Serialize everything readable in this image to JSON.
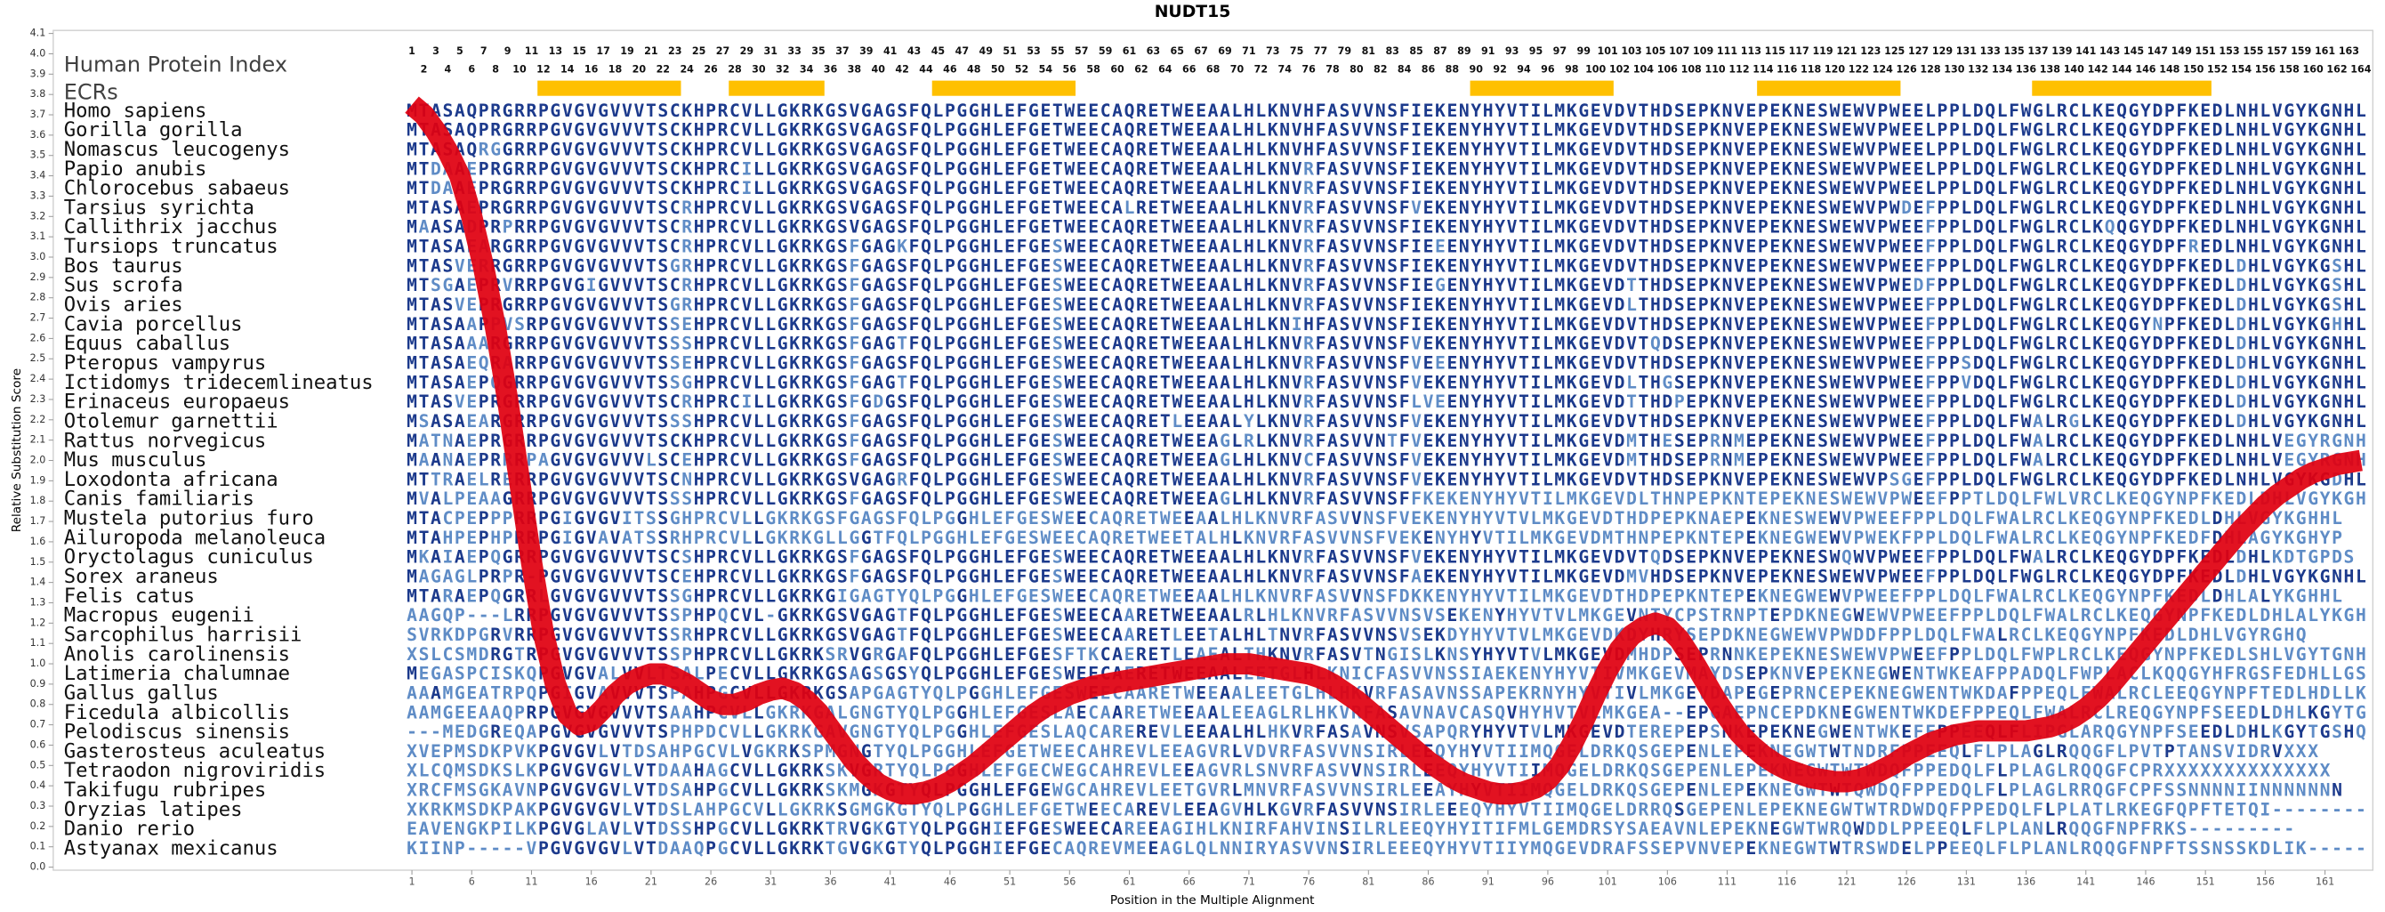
{
  "chart_data": {
    "type": "line",
    "title": "NUDT15",
    "y_label": "Relative Substitution Score",
    "x_label": "Position in the Multiple Alignment",
    "index_label": "Human Protein Index",
    "ecr_label": "ECRs",
    "color": "#e00010",
    "ecr_color": "#ffc000",
    "match_color": "#1c3a8c",
    "mismatch_color": "#5f8cc6",
    "xlim": [
      -29,
      165
    ],
    "ylim": [
      0,
      4.1
    ],
    "xticks": [
      1,
      6,
      11,
      16,
      21,
      26,
      31,
      36,
      41,
      46,
      51,
      56,
      61,
      66,
      71,
      76,
      81,
      86,
      91,
      96,
      101,
      106,
      111,
      116,
      121,
      126,
      131,
      136,
      141,
      146,
      151,
      156,
      161
    ],
    "yticks": [
      {
        "value": 0,
        "label": "0.0"
      },
      0.1,
      0.2,
      0.3,
      0.4,
      0.5,
      0.6,
      0.7,
      0.8,
      0.9,
      {
        "value": 1,
        "label": "1.0"
      },
      1.1,
      1.2,
      1.3,
      1.4,
      1.5,
      1.6,
      1.7,
      1.8,
      1.9,
      {
        "value": 2,
        "label": "2.0"
      },
      2.1,
      2.2,
      2.3,
      2.4,
      2.5,
      2.6,
      2.7,
      2.8,
      2.9,
      {
        "value": 3,
        "label": "3.0"
      },
      3.1,
      3.2,
      3.3,
      3.4,
      3.5,
      3.6,
      3.7,
      3.8,
      3.9,
      {
        "value": 4,
        "label": "4.0"
      },
      4.1
    ],
    "x": [
      1,
      2,
      3,
      4,
      5,
      6,
      7,
      8,
      9,
      10,
      11,
      12,
      13,
      14,
      15,
      16,
      17,
      18,
      19,
      20,
      21,
      22,
      23,
      24,
      25,
      26,
      27,
      28,
      29,
      30,
      31,
      32,
      33,
      34,
      35,
      36,
      37,
      38,
      39,
      40,
      41,
      42,
      43,
      44,
      45,
      46,
      47,
      48,
      49,
      50,
      51,
      52,
      53,
      54,
      55,
      56,
      57,
      58,
      59,
      60,
      61,
      62,
      63,
      64,
      65,
      66,
      67,
      68,
      69,
      70,
      71,
      72,
      73,
      74,
      75,
      76,
      77,
      78,
      79,
      80,
      81,
      82,
      83,
      84,
      85,
      86,
      87,
      88,
      89,
      90,
      91,
      92,
      93,
      94,
      95,
      96,
      97,
      98,
      99,
      100,
      101,
      102,
      103,
      104,
      105,
      106,
      107,
      108,
      109,
      110,
      111,
      112,
      113,
      114,
      115,
      116,
      117,
      118,
      119,
      120,
      121,
      122,
      123,
      124,
      125,
      126,
      127,
      128,
      129,
      130,
      131,
      132,
      133,
      134,
      135,
      136,
      137,
      138,
      139,
      140,
      141,
      142,
      143,
      144,
      145,
      146,
      147,
      148,
      149,
      150,
      151,
      152,
      153,
      154,
      155,
      156,
      157,
      158,
      159,
      160,
      161,
      162,
      163,
      164
    ],
    "values": [
      3.75,
      3.7,
      3.62,
      3.52,
      3.4,
      3.2,
      2.95,
      2.65,
      2.3,
      1.9,
      1.5,
      1.15,
      0.9,
      0.75,
      0.7,
      0.72,
      0.78,
      0.85,
      0.9,
      0.93,
      0.95,
      0.95,
      0.93,
      0.9,
      0.86,
      0.82,
      0.8,
      0.8,
      0.82,
      0.85,
      0.87,
      0.88,
      0.86,
      0.82,
      0.76,
      0.68,
      0.6,
      0.52,
      0.46,
      0.41,
      0.38,
      0.36,
      0.36,
      0.37,
      0.39,
      0.42,
      0.46,
      0.5,
      0.55,
      0.6,
      0.65,
      0.7,
      0.75,
      0.79,
      0.82,
      0.85,
      0.87,
      0.89,
      0.9,
      0.91,
      0.92,
      0.93,
      0.94,
      0.95,
      0.96,
      0.97,
      0.98,
      0.99,
      1.0,
      1.0,
      1.0,
      0.99,
      0.98,
      0.97,
      0.96,
      0.95,
      0.93,
      0.9,
      0.86,
      0.82,
      0.77,
      0.72,
      0.67,
      0.62,
      0.57,
      0.52,
      0.48,
      0.44,
      0.41,
      0.39,
      0.37,
      0.36,
      0.36,
      0.37,
      0.39,
      0.43,
      0.5,
      0.6,
      0.72,
      0.85,
      0.97,
      1.07,
      1.14,
      1.18,
      1.2,
      1.18,
      1.12,
      1.03,
      0.93,
      0.83,
      0.74,
      0.66,
      0.6,
      0.55,
      0.51,
      0.48,
      0.46,
      0.44,
      0.43,
      0.42,
      0.42,
      0.43,
      0.45,
      0.48,
      0.51,
      0.55,
      0.58,
      0.61,
      0.63,
      0.65,
      0.66,
      0.67,
      0.67,
      0.67,
      0.67,
      0.67,
      0.68,
      0.69,
      0.71,
      0.74,
      0.78,
      0.83,
      0.89,
      0.96,
      1.03,
      1.1,
      1.17,
      1.24,
      1.31,
      1.38,
      1.45,
      1.52,
      1.59,
      1.66,
      1.72,
      1.78,
      1.83,
      1.87,
      1.91,
      1.94,
      1.96,
      1.98,
      1.99,
      2.0
    ],
    "ecrs": [
      {
        "start": 12,
        "end": 23
      },
      {
        "start": 28,
        "end": 35
      },
      {
        "start": 45,
        "end": 56
      },
      {
        "start": 90,
        "end": 101
      },
      {
        "start": 114,
        "end": 125
      },
      {
        "start": 137,
        "end": 151
      }
    ],
    "alignment": [
      {
        "species": "Homo sapiens",
        "sequence": "MTASAQPRGRRPGVGVGVVVTSCKHPRCVLLGKRKGSVGAGSFQLPGGHLEFGETWEECAQRETWEEAALHLKNVHFASVVNSFIEKENYHYVTILMKGEVDVTHDSEPKNVEPEKNESWEWVPWEELPPLDQLFWGLRCLKEQGYDPFKEDLNHLVGYKGNHL"
      },
      {
        "species": "Gorilla gorilla",
        "sequence": "MTASAQPRGRRPGVGVGVVVTSCKHPRCVLLGKRKGSVGAGSFQLPGGHLEFGETWEECAQRETWEEAALHLKNVHFASVVNSFIEKENYHYVTILMKGEVDVTHDSEPKNVEPEKNESWEWVPWEELPPLDQLFWGLRCLKEQGYDPFKEDLNHLVGYKGNHL"
      },
      {
        "species": "Nomascus leucogenys",
        "sequence": "MTASAQRGGRRPGVGVGVVVTSCKHPRCVLLGKRKGSVGAGSFQLPGGHLEFGETWEECAQRETWEEAALHLKNVHFASVVNSFIEKENYHYVTILMKGEVDVTHDSEPKNVEPEKNESWEWVPWEELPPLDQLFWGLRCLKEQGYDPFKEDLNHLVGYKGNHL"
      },
      {
        "species": "Papio anubis",
        "sequence": "MTDAAEPRGRRPGVGVGVVVTSCKHPRCILLGKRKGSVGAGSFQLPGGHLEFGETWEECAQRETWEEAALHLKNVRFASVVNSFIEKENYHYVTILMKGEVDVTHDSEPKNVEPEKNESWEWVPWEELPPLDQLFWGLRCLKEQGYDPFKEDLNHLVGYKGNHL"
      },
      {
        "species": "Chlorocebus sabaeus",
        "sequence": "MTDAAEPRGRRPGVGVGVVVTSCKHPRCILLGKRKGSVGAGSFQLPGGHLEFGETWEECAQRETWEEAALHLKNVRFASVVNSFIEKENYHYVTILMKGEVDVTHDSEPKNVEPEKNESWEWVPWEELPPLDQLFWGLRCLKEQGYDPFKEDLNHLVGYKGNHL"
      },
      {
        "species": "Tarsius syrichta",
        "sequence": "MTASAEPRGRRPGVGVGVVVTSCRHPRCVLLGKRKGSVGAGSFQLPGGHLEFGETWEECALRETWEEAALHLKNVRFASVVNSFVEKENYHYVTILMKGEVDVTHDSEPKNVEPEKNESWEWVPWDEFPPLDQLFWGLRCLKEQGYDPFKEDLNHLVGYKGNHL"
      },
      {
        "species": "Callithrix jacchus",
        "sequence": "MAASADPRPRRPGVGVGVVVTSCRHPRCVLLGKRKGSVGAGSFQLPGGHLEFGETWEECAQRETWEEAALHLKNVRFASVVNSFIEKENYHYVTILMKGEVDVTHDSEPKNVEPEKNESWEWVPWEEFPPLDQLFWGLRCLKQQGYDPFKEDLNHLVGYKGNHL"
      },
      {
        "species": "Tursiops truncatus",
        "sequence": "MTASAEARGRRPGVGVGVVVTSCRHPRCVLLGKRKGSFGAGKFQLPGGHLEFGESWEECAQRETWEEAALHLKNVRFASVVNSFIEEENYHYVTILMKGEVDVTHDSEPKNVEPEKNESWEWVPWEEFPPLDQLFWGLRCLKEQGYDPFREDLNHLVGYKGNHL"
      },
      {
        "species": "Bos taurus",
        "sequence": "MTASVERRGRRPGVGVGVVVTSGRHPRCVLLGKRKGSFGAGSFQLPGGHLEFGESWEECAQRETWEEAALHLKNVRFASVVNSFIEKENYHYVTILMKGEVDVTHDSEPKNVEPEKNESWEWVPWEEFPPLDQLFWGLRCLKEQGYDPFKEDLDHLVGYKGSHL"
      },
      {
        "species": "Sus scrofa",
        "sequence": "MTSGAEPRVRRPGVGIGVVVTSCRHPRCVLLGKRKGSFGAGSFQLPGGHLEFGESWEECAQRETWEEAALHLKNVRFASVVNSFIEGENYHYVTILMKGEVDTTHDSEPKNVEPEKNESWEWVPWEDFPPLDQLFWGLRCLKEQGYDPFKEDLDHLVGYKGSHL"
      },
      {
        "species": "Ovis aries",
        "sequence": "MTASVEPRGRRPGVGVGVVVTSGRHPRCVLLGKRKGSFGAGSFQLPGGHLEFGESWEECAQRETWEEAALHLKNVRFASVVNSFIEKENYHYVTILMKGEVDLTHDSEPKNVEPEKNESWEWVPWEEFPPLDQLFWGLRCLKEQGYDPFKEDLDHLVGYKGSHL"
      },
      {
        "species": "Cavia porcellus",
        "sequence": "MTASAAPPVSRPGVGVGVVVTSSEHPRCVLLGKRKGSFGAGSFQLPGGHLEFGESWEECAQRETWEEAALHLKNIHFASVVNSFIEKENYHYVTILMKGEVDVTHDSEPKNVEPEKNESWEWVPWEEFPPLDQLFWGLRCLKEQGYNPFKEDLDHLVGYKGHHL"
      },
      {
        "species": "Equus caballus",
        "sequence": "MTASAAARGRRPGVGVGVVVTSSSHPRCVLLGKRKGSFGAGTFQLPGGHLEFGESWEECAQRETWEEAALHLKNVRFASVVNSFVEKENYHYVTILMKGEVDVTQDSEPKNVEPEKNESWEWVPWEEFPPLDQLFWGLRCLKEQGYDPFKEDLDHLVGYKGNHL"
      },
      {
        "species": "Pteropus vampyrus",
        "sequence": "MTASAEQRARRPGVGVGVVVTSSEHPRCVLLGKRKGSFGAGSFQLPGGHLEFGESWEECAQRETWEEAALHLKNVRFASVVNSFVEEENYHYVTILMKGEVDVTHDSEPKNVEPEKNESWEWVPWEEFPPSDQLFWGLRCLKEQGYDPFKEDLDHLVGYKGNHL"
      },
      {
        "species": "Ictidomys tridecemlineatus",
        "sequence": "MTASAEPQGRRPGVGVGVVVTSSGHPRCVLLGKRKGSFGAGTFQLPGGHLEFGESWEECAQRETWEEAALHLKNVRFASVVNSFVEKENYHYVTILMKGEVDLTHGSEPKNVEPEKNESWEWVPWEEFPPVDQLFWGLRCLKEQGYDPFKEDLDHLVGYKGNHL"
      },
      {
        "species": "Erinaceus europaeus",
        "sequence": "MTASVEPRGRRPGVGVGVVVTSCRHPRCILLGKRKGSFGDGSFQLPGGHLEFGESWEECAQRETWEEAALHLKNVRFASVVNSFLVEENYHYVTILMKGEVDTTHDPEPKNVEPEKNESWEWVPWEEFPPLDQLFWGLRCLKEQGYDPFKEDLDHLVGYKGNHL"
      },
      {
        "species": "Otolemur garnettii",
        "sequence": "MSASAEARGRRPGVGVGVVVTSSSHPRCVLLGKRKGSFGAGSFQLPGGHLEFGESWEECAQRETLEEAALYLKNVRFASVVNSFVEKENYHYVTILMKGEVDVTHDSEPKNVEPEKNESWEWVPWEEFPPLDQLFWALRGLKEQGYDPFKEDLDHLVGYKGNHL"
      },
      {
        "species": "Rattus norvegicus",
        "sequence": "MATNAEPRGRRPGVGVGVVVTSCKHPRCVLLGKRKGSFGAGSFQLPGGHLEFGESWEECAQRETWEEAGLRLKNVRFASVVNTFVEKENYHYVTILMKGEVDMTHESEPRNMEPEKNESWEWVPWEEFPPLDQLFWALRCLKEQGYDPFKEDLNHLVEGYRGNHL"
      },
      {
        "species": "Mus musculus",
        "sequence": "MAANAEPRRRPAGVGVGVVVLSCEHPRCVLLGKRKGSFGAGSFQLPGGHLEFGESWEECAQRETWEEAGLHLKNVCFASVVNSFVEKENYHYVTILMKGEVDMTHDSEPRNMEPEKNESWEWVPWEEFPPLDQLFWALRCLKEQGYDPFKEDLNHLVEGYRGNHL"
      },
      {
        "species": "Loxodonta africana",
        "sequence": "MTTRAELRERRPGVGVGVVVTSCNHPRCVLLGKRKGSVGAGRFQLPGGHLEFGESWEECAQRETWEEAALHLKNVRFASVVNSFVEKENYHYVTILMKGEVDVTHDSEPKNVEPEKNESWEWVPSGEFPPLDQLFWGLRCLKEQGYDPFKEDLNHLVGYKGDHL"
      },
      {
        "species": "Canis familiaris",
        "sequence": "MVALPEAAGRRPGVGVGVVVTSSSHPRCVLLGKRKGSFGAGSFQLPGGHLEFGESWEECAQRETWEEAGLHLKNVRFASVVNSFFKEKENYHYVTILMKGEVDLTHNPEPKNTEPEKNESWEWVPWEEFPPTLDQLFWLVRCLKEQGYNPFKEDLDHLVGYKGHHL"
      },
      {
        "species": "Mustela putorius furo",
        "sequence": "MTACPEPPPRRPGIGVGVITSSGHPRCVLLGKRKGSFGAGSFQLPGGHLEFGESWEECAQRETWEEAALHLKNVRFASVVNSFVEKENYHYVTVLMKGEVDTHDPEPKNAEPEKNESWEWVPWEEFPPLDQLFWALRCLKEQGYNPFKEDLDHLVGYKGHHL"
      },
      {
        "species": "Ailuropoda melanoleuca",
        "sequence": "MTAHPEPHPRRPGIGVAVATSSRHPRCVLLGKRKGLLGGTFQLPGGHLEFGESWEECAQRETWEETALHLKNVRFASVVNSFVEKENYHYVTILMKGEVDMTHNPEPKNTEPEKNEGWEWVPWEKFPPLDQLFWALRCLKEQGYNPFKEDFDHLAGYKGHYP"
      },
      {
        "species": "Oryctolagus cuniculus",
        "sequence": "MKAIAEPQGRRPGVGVGVVVTSCSHPRCVLLGKRKGSFGAGSFQLPGGHLEFGESWEECAQRETWEEAALHLKNVRFASVVNSFVEKENYHYVTILMKGEVDVTQDSEPKNVEPEKNESWQWVPWEEFPPLDQLFWALRCLKEQGYDPFKEDLDHLKDTGPDS"
      },
      {
        "species": "Sorex araneus",
        "sequence": "MAGAGLPRPR-PGVGVGVVVTSCEHPRCVLLGKRKGSFGAGSFQLPGGHLEFGESWEECAQRETWEEAALHLKNVRFASVVNSFAEKENYHYVTILMKGEVDMVHDSEPKNVEPEKNESWEWVPWEEFPPLDQLFWGLRCLKEQGYDPFKEDLDHLVGYKGNHL-"
      },
      {
        "species": "Felis catus",
        "sequence": "MTARAEPQGRRLGVGVGVVVTSSGHPRCVLLGKRKGIGAGTYQLPGGHLEFGESWEECAQRETWEEAALHLKNVRFASVVNSFDKKENYHYVTILMKGEVDTHDPEPKNTEPEKNEGWEWVPWEEFPPLDQLFWALRCLKEQGYNPFKEDLDHLALYKGHHL"
      },
      {
        "species": "Macropus eugenii",
        "sequence": "AAGQP---LRRPGVGVGVVVTSSPHPQCVL-GKRKGSVGAGTFQLPGGHLEFGESWEECAARETWEEAALRLHLKNVRFASVVNSVSEKENYHYVTVLMKGEVNTYCPSTRNPTEPDKNEGWEWVPWEEFPPLDQLFWALRCLKEQGYNPFKEDLDHLALYKGHHL"
      },
      {
        "species": "Sarcophilus harrisii",
        "sequence": "SVRKDPGRVRRPGVGVGVVVTSSRHPRCVLLGKRKGSVGAGTFQLPGGHLEFGESWEECAARETLEETALHLTNVRFASVVNSVSEKDYHYVTVLMKGEVDKDYHRYSEPDKNEGWEWVPWDDFPPLDQLFWALRCLKEQGYNPFKEDLDHLVGYRGHQ"
      },
      {
        "species": "Anolis carolinensis",
        "sequence": "XSLCSMDRGTRPGVGVGVVVTSSPHPRCVLLGKRKSRVGRGAFQLPGGHLEFGESFTKCAERETLEAEALTHKNVRFASVTNGISLKNSYHYVTVLMKGEVDMHDPSEPRNNKEPEKNESWEWVPWEEFPPLDQLFWPLRCLKEQGYNPFKEDLSHLVGYTGNHL"
      },
      {
        "species": "Latimeria chalumnae",
        "sequence": "MEGASPCISKQPGVGVALVVLTSALPECVLLGKRKGSAGSGSYQLPGGHLEFGESWEECAERETWEEAALEETGLHLKNICFASVVNSSIAEKENYHYVTIVMKGEVMAYDSEPKNVEPEKNEGWENTWKEAFPPADQLFWPLACLKQQGYHFRGSFEDHLLGSTAAHQ"
      },
      {
        "species": "Gallus gallus",
        "sequence": "AAAMGEATRPQPGIGVAVVVTSPAHPGCVLLGKRKGSAPGAGTYQLPGGHLEFGESWEECAARETWEEAALEETGLHLHKVRFASAVNSSAPEKRNYHYVTIVLMKGEVDAPEGEPRNCEPEKNEGWENTWKDAFPPEQLFWALRCLEEQGYNPFTEDLHDLLKGYTGSHQ"
      },
      {
        "species": "Ficedula albicollis",
        "sequence": "AAMGEEAAQPRPGVGVGVVVTSAAHPCVLLGKRKGALGNGTYQLPGGHLEFGESLAECAARETWEEAALEEAGLRLHKVRFASAVNAVCASQVHYHVTVLMKGEA--EPGAEPNCEPDKNEGWENTWKDEFPPEQLFWALRCLREQGYNPFSEEDLDHLKGYTGSHQ"
      },
      {
        "species": "Pelodiscus sinensis",
        "sequence": "---MEDGREQAPGVGVGVVVTSPHPDCVLLGKRKGAVGNGTYQLPGGHLEFGESLAQCAREREVLEEAALHLHKVRFASAVNSVSAPQRYHYVTVLMKGEVDTEREPEPSNKEPEKNEGWENTWKEFFPPEEQLFLIPGLARQGYNPFSEEDLDHLKGYTGSHQ"
      },
      {
        "species": "Gasterosteus aculeatus",
        "sequence": "XVEPMSDKPVKPGVGVLVTDSAHPGCVLVGKRKSPMGNGTYQLPGGHLEFGETWEECAHREVLEEAGVRLVDVRFASVVNSIRLEEQYHYVTIIMQGELDRKQSGEPENLEPEKNEGWTWTNDRFPPEEQLFLPLAGLRQQGFLPVTPTANSVIDRVXXX"
      },
      {
        "species": "Tetraodon nigroviridis",
        "sequence": "XLCQMSDKSLKPGVGVGVLVTDAAHAGCVLLGKRKSKVGRTYQLPGGHLEFGECWEGCAHREVLEEAGVRLSNVRFASVVNSIRLEEQYHYVTIIMQGELDRKQSGEPENLEPEKNEGWTWTWDQFPPEDQLFLPLAGLRQQGFCPRXXXXXXXXXXXXXX"
      },
      {
        "species": "Takifugu rubripes",
        "sequence": "XRCFMSGKAVNPGVGVGVLVTDSAHPGCVLLGKRKSKMGKGTYQLPGGHLEFGEWGCAHREVLEETGVRLMNVRFASVVNSIRLEEAYHYVTIIMQGELDRKQSGEPENLEPEKNEGWTWTQWDQFPPEDQLFLPLAGLRRQGFCPFSSNNNNIINNNNNNN"
      },
      {
        "species": "Oryzias latipes",
        "sequence": "XKRKMSDKPAKPGVGVGVLVTDSLAHPGCVLLGKRKSGMGKGTYQLPGGHLEFGETWEECAREVLEEAGVHLKGVRFASVVNSIRLEEEQYHYVTIIMQGELDRRQSGEPENLEPEKNEGWTWTRDWDQFPPEDQLFLPLATLRKEGFQPFTETQI---------"
      },
      {
        "species": "Danio rerio",
        "sequence": "EAVENGKPILKPGVGLAVLVTDSSHPGCVLLGKRKTRVGKGTYQLPGGHIEFGESWEECAREEAGIHLKNIRFAHVINSILRLEEQYHYITIFMLGEMDRSYSAEAVNLEPEKNEGWTWRQWDDLPPEEQLFLPLANLRQQGFNPFRKS---------"
      },
      {
        "species": "Astyanax mexicanus",
        "sequence": "KIINP-----VPGVGVGVLVTDAAQPGCVLLGKRKTGVGKGTYQLPGGHIEFGECAQREVMEEAGLQLNNIRYASVVNSIRLEEEQYHYVTIIYMQGEVDRAFSSEPVNVEPEKNEGWTWTRSWDELPPEEQLFLPLANLRQQGFNPFTSSNSSKDLIK-------"
      }
    ]
  }
}
